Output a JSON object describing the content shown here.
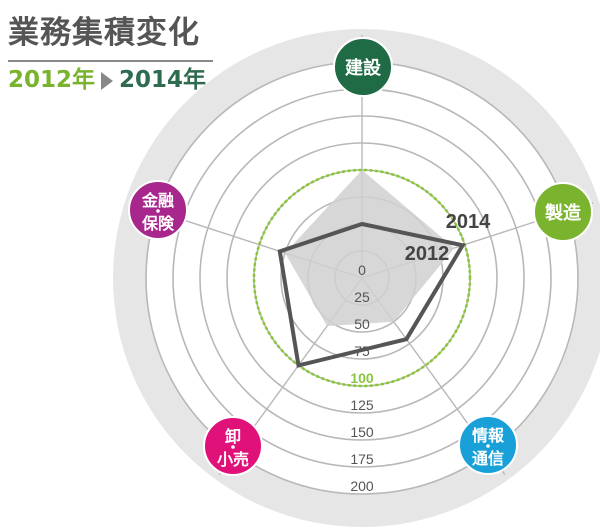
{
  "header": {
    "title": "業務集積変化",
    "year_from": "2012年",
    "year_to": "2014年"
  },
  "chart_data": {
    "type": "radar",
    "axes": [
      "建設",
      "製造",
      "情報・通信",
      "卸・小売",
      "金融・保険"
    ],
    "axis_labels": [
      {
        "lines": [
          "建設"
        ],
        "color": "#1e6b45"
      },
      {
        "lines": [
          "製造"
        ],
        "color": "#7ab32e"
      },
      {
        "lines": [
          "情報",
          "通信"
        ],
        "color": "#1aa0d8"
      },
      {
        "lines": [
          "卸",
          "小売"
        ],
        "color": "#e0127a"
      },
      {
        "lines": [
          "金融",
          "保険"
        ],
        "color": "#a8278c"
      }
    ],
    "ticks": [
      0,
      25,
      50,
      75,
      100,
      125,
      150,
      175,
      200
    ],
    "rmax": 225,
    "reference_value": 100,
    "series": [
      {
        "name": "2012",
        "values": [
          100,
          90,
          50,
          55,
          75
        ]
      },
      {
        "name": "2014",
        "values": [
          50,
          98,
          70,
          100,
          80
        ]
      }
    ],
    "colors": {
      "series_2012": "#d0d0d0",
      "series_2014": "#555555",
      "reference": "#8cc63f",
      "outer_ring": "#e6e6e6",
      "grid": "#b8b8b8"
    }
  }
}
